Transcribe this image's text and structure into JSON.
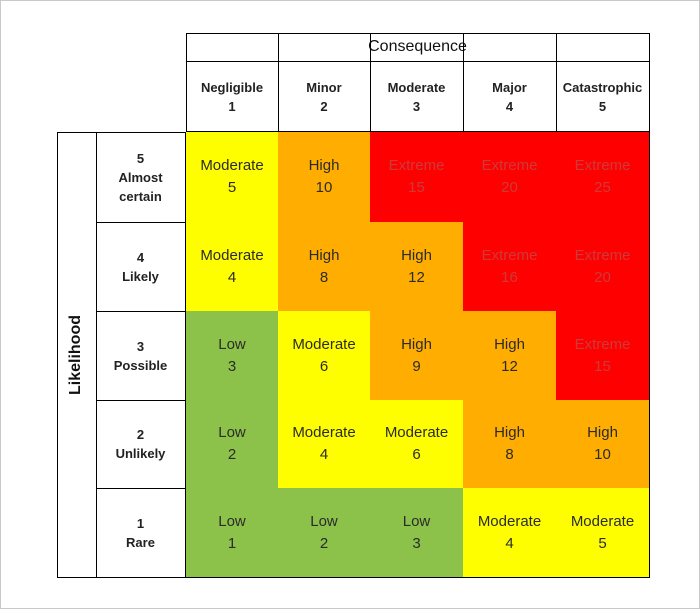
{
  "chart_data": {
    "type": "table",
    "title": "",
    "column_axis_title": "Consequence",
    "row_axis_title": "Likelihood",
    "columns": [
      {
        "name": "Negligible",
        "score": "1"
      },
      {
        "name": "Minor",
        "score": "2"
      },
      {
        "name": "Moderate",
        "score": "3"
      },
      {
        "name": "Major",
        "score": "4"
      },
      {
        "name": "Catastrophic",
        "score": "5"
      }
    ],
    "rows": [
      {
        "score": "5",
        "name_lines": [
          "Almost",
          "certain"
        ],
        "cells": [
          {
            "rating": "Moderate",
            "value": 5
          },
          {
            "rating": "High",
            "value": 10
          },
          {
            "rating": "Extreme",
            "value": 15
          },
          {
            "rating": "Extreme",
            "value": 20
          },
          {
            "rating": "Extreme",
            "value": 25
          }
        ]
      },
      {
        "score": "4",
        "name_lines": [
          "Likely"
        ],
        "cells": [
          {
            "rating": "Moderate",
            "value": 4
          },
          {
            "rating": "High",
            "value": 8
          },
          {
            "rating": "High",
            "value": 12
          },
          {
            "rating": "Extreme",
            "value": 16
          },
          {
            "rating": "Extreme",
            "value": 20
          }
        ]
      },
      {
        "score": "3",
        "name_lines": [
          "Possible"
        ],
        "cells": [
          {
            "rating": "Low",
            "value": 3
          },
          {
            "rating": "Moderate",
            "value": 6
          },
          {
            "rating": "High",
            "value": 9
          },
          {
            "rating": "High",
            "value": 12
          },
          {
            "rating": "Extreme",
            "value": 15
          }
        ]
      },
      {
        "score": "2",
        "name_lines": [
          "Unlikely"
        ],
        "cells": [
          {
            "rating": "Low",
            "value": 2
          },
          {
            "rating": "Moderate",
            "value": 4
          },
          {
            "rating": "Moderate",
            "value": 6
          },
          {
            "rating": "High",
            "value": 8
          },
          {
            "rating": "High",
            "value": 10
          }
        ]
      },
      {
        "score": "1",
        "name_lines": [
          "Rare"
        ],
        "cells": [
          {
            "rating": "Low",
            "value": 1
          },
          {
            "rating": "Low",
            "value": 2
          },
          {
            "rating": "Low",
            "value": 3
          },
          {
            "rating": "Moderate",
            "value": 4
          },
          {
            "rating": "Moderate",
            "value": 5
          }
        ]
      }
    ],
    "rating_colors": {
      "Low": {
        "fill": "#8cc24a",
        "text": "#2b2b2b"
      },
      "Moderate": {
        "fill": "#fefe00",
        "text": "#2b2b2b"
      },
      "High": {
        "fill": "#ffad00",
        "text": "#2b2b2b"
      },
      "Extreme": {
        "fill": "#ff0000",
        "text": "#cc3a3a"
      }
    }
  }
}
